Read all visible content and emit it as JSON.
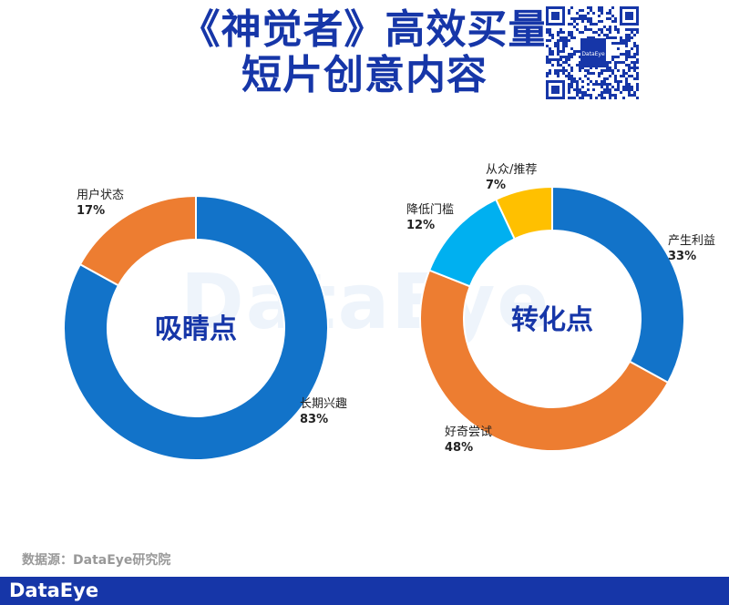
{
  "header": {
    "title_line1": "《神觉者》高效买量",
    "title_line2": "短片创意内容"
  },
  "qr": {
    "logo_text": "DataEye"
  },
  "watermark": "DataEye",
  "colors": {
    "blue": "#1273c9",
    "orange": "#ed7d31",
    "light_blue": "#00b0f0",
    "yellow": "#ffc000",
    "title_blue": "#1636a8"
  },
  "chart_data": [
    {
      "type": "pie",
      "donut": true,
      "center_label": "吸睛点",
      "slices": [
        {
          "label": "长期兴趣",
          "value": 83,
          "value_text": "83%",
          "color": "#1273c9"
        },
        {
          "label": "用户状态",
          "value": 17,
          "value_text": "17%",
          "color": "#ed7d31"
        }
      ]
    },
    {
      "type": "pie",
      "donut": true,
      "center_label": "转化点",
      "slices": [
        {
          "label": "产生利益",
          "value": 33,
          "value_text": "33%",
          "color": "#1273c9"
        },
        {
          "label": "好奇尝试",
          "value": 48,
          "value_text": "48%",
          "color": "#ed7d31"
        },
        {
          "label": "降低门槛",
          "value": 12,
          "value_text": "12%",
          "color": "#00b0f0"
        },
        {
          "label": "从众/推荐",
          "value": 7,
          "value_text": "7%",
          "color": "#ffc000"
        }
      ]
    }
  ],
  "source": "数据源：DataEye研究院",
  "footer": {
    "brand": "DataEye"
  }
}
